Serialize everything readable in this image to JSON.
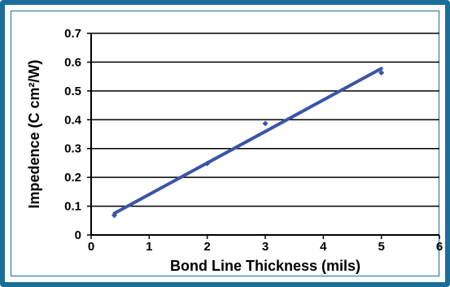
{
  "chart_data": {
    "type": "scatter",
    "title": "",
    "xlabel": "Bond Line Thickness (mils)",
    "ylabel": "Impedence (C cm²/W)",
    "xlim": [
      0,
      6
    ],
    "ylim": [
      0,
      0.7
    ],
    "x_ticks": [
      "0",
      "1",
      "2",
      "3",
      "4",
      "5",
      "6"
    ],
    "y_ticks": [
      "0",
      "0.1",
      "0.2",
      "0.3",
      "0.4",
      "0.5",
      "0.6",
      "0.7"
    ],
    "grid": "horizontal",
    "points": [
      {
        "x": 0.4,
        "y": 0.068
      },
      {
        "x": 2.0,
        "y": 0.248
      },
      {
        "x": 3.0,
        "y": 0.387
      },
      {
        "x": 5.0,
        "y": 0.563
      }
    ],
    "trendline": {
      "x": [
        0.4,
        5.0
      ],
      "y": [
        0.075,
        0.578
      ]
    },
    "colors": {
      "frame": "#1a6f99",
      "series": "#3b55a5"
    }
  }
}
